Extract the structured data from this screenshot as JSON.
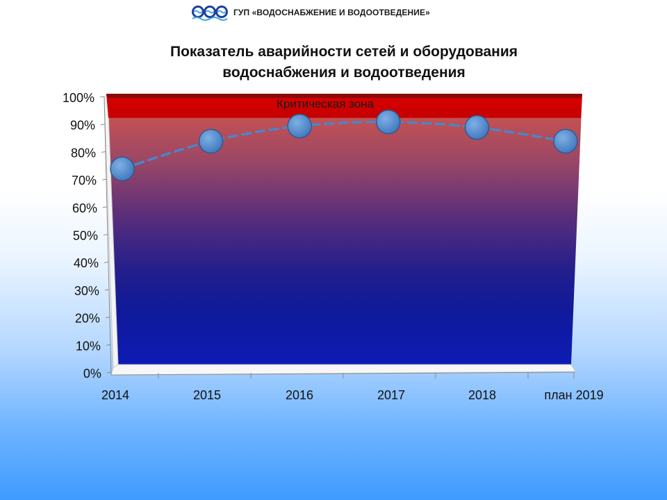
{
  "header": {
    "organization": "ГУП «ВОДОСНАБЖЕНИЕ И ВОДООТВЕДЕНИЕ»"
  },
  "chart_title": {
    "line1": "Показатель аварийности сетей и оборудования",
    "line2": "водоснабжения и водоотведения"
  },
  "chart_data": {
    "type": "line",
    "categories": [
      "2014",
      "2015",
      "2016",
      "2017",
      "2018",
      "план 2019"
    ],
    "series": [
      {
        "values": [
          70,
          80,
          85.5,
          87,
          85,
          80
        ]
      }
    ],
    "ylim": [
      0,
      100
    ],
    "y_ticks": [
      "0%",
      "10%",
      "20%",
      "30%",
      "40%",
      "50%",
      "60%",
      "70%",
      "80%",
      "90%",
      "100%"
    ],
    "unit": "%",
    "critical_zone": {
      "label": "Критическая зона",
      "from": 92,
      "to": 100,
      "color": "#d00000"
    },
    "background_gradient": [
      "#c31010",
      "#7a3368",
      "#0f1896",
      "#0e1bb4"
    ],
    "series_color": "#4a86c8",
    "line_style": "dashed",
    "marker": "large-circle",
    "grid": false
  }
}
